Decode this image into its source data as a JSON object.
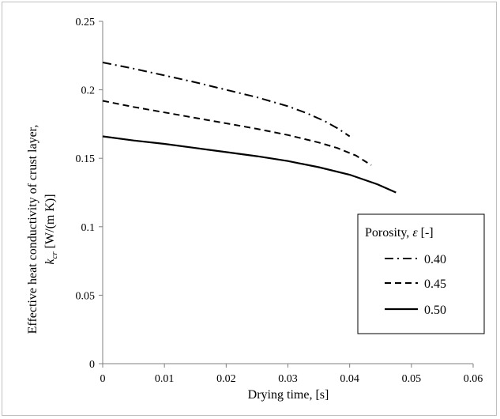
{
  "chart_data": {
    "type": "line",
    "xlabel": "Drying time, [s]",
    "ylabel_line1": "Effective heat conductivity of crust layer,",
    "ylabel_line2_symbol": "k",
    "ylabel_line2_sub": "cr",
    "ylabel_line2_unit": " [W/(m K)]",
    "xlim": [
      0,
      0.06
    ],
    "ylim": [
      0,
      0.25
    ],
    "x_ticks": [
      "0",
      "0.01",
      "0.02",
      "0.03",
      "0.04",
      "0.05",
      "0.06"
    ],
    "y_ticks": [
      "0",
      "0.05",
      "0.1",
      "0.15",
      "0.2",
      "0.25"
    ],
    "legend": {
      "title_prefix": "Porosity, ",
      "title_symbol": "ε",
      "title_suffix": " [-]",
      "placement": "right"
    },
    "series": [
      {
        "name": "0.40",
        "style": "dashdot",
        "x": [
          0,
          0.005,
          0.01,
          0.015,
          0.02,
          0.025,
          0.03,
          0.033,
          0.036,
          0.038,
          0.04
        ],
        "y": [
          0.22,
          0.2155,
          0.2105,
          0.2055,
          0.2,
          0.1945,
          0.188,
          0.183,
          0.177,
          0.172,
          0.166
        ]
      },
      {
        "name": "0.45",
        "style": "dashed",
        "x": [
          0,
          0.005,
          0.01,
          0.015,
          0.02,
          0.025,
          0.03,
          0.035,
          0.038,
          0.041,
          0.0435
        ],
        "y": [
          0.192,
          0.1875,
          0.1835,
          0.1795,
          0.1755,
          0.1715,
          0.167,
          0.1615,
          0.1575,
          0.152,
          0.145
        ]
      },
      {
        "name": "0.50",
        "style": "solid",
        "x": [
          0,
          0.005,
          0.01,
          0.015,
          0.02,
          0.025,
          0.03,
          0.035,
          0.04,
          0.0445,
          0.0475
        ],
        "y": [
          0.166,
          0.163,
          0.1605,
          0.1575,
          0.1545,
          0.1515,
          0.148,
          0.1435,
          0.138,
          0.131,
          0.125
        ]
      }
    ],
    "colors": {
      "line": "#000000",
      "axis": "#808080",
      "frame": "#bfbfbf"
    }
  }
}
